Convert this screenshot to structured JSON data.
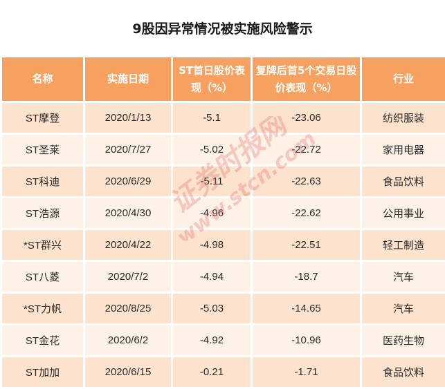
{
  "title": "9股因异常情况被实施风险警示",
  "columns": [
    {
      "label": "名称"
    },
    {
      "label": "实施日期"
    },
    {
      "label": "ST首日股价表现（%）"
    },
    {
      "label": "复牌后首5个交易日股价表现（%）"
    },
    {
      "label": "行业"
    }
  ],
  "rows": [
    {
      "name": "ST摩登",
      "date": "2020/1/13",
      "st_day": "-5.1",
      "first5": "-23.06",
      "industry": "纺织服装"
    },
    {
      "name": "ST圣莱",
      "date": "2020/7/27",
      "st_day": "-5.02",
      "first5": "-22.72",
      "industry": "家用电器"
    },
    {
      "name": "ST科迪",
      "date": "2020/6/29",
      "st_day": "-5.11",
      "first5": "-22.63",
      "industry": "食品饮料"
    },
    {
      "name": "ST浩源",
      "date": "2020/4/30",
      "st_day": "-4.96",
      "first5": "-22.62",
      "industry": "公用事业"
    },
    {
      "name": "*ST群兴",
      "date": "2020/4/22",
      "st_day": "-4.98",
      "first5": "-22.51",
      "industry": "轻工制造"
    },
    {
      "name": "ST八菱",
      "date": "2020/7/2",
      "st_day": "-4.94",
      "first5": "-18.7",
      "industry": "汽车"
    },
    {
      "name": "*ST力帆",
      "date": "2020/8/25",
      "st_day": "-5.03",
      "first5": "-14.65",
      "industry": "汽车"
    },
    {
      "name": "ST金花",
      "date": "2020/6/2",
      "st_day": "-4.92",
      "first5": "-10.96",
      "industry": "医药生物"
    },
    {
      "name": "ST加加",
      "date": "2020/6/15",
      "st_day": "-0.21",
      "first5": "-1.71",
      "industry": "食品饮料"
    }
  ],
  "watermark": {
    "text_cn": "证券时报网",
    "text_url": "www.stcn.com",
    "color": "#e05a5a"
  },
  "colors": {
    "header_bg": "#f7a161",
    "row_odd": "#fde3cd",
    "row_even": "#fef2e7"
  }
}
